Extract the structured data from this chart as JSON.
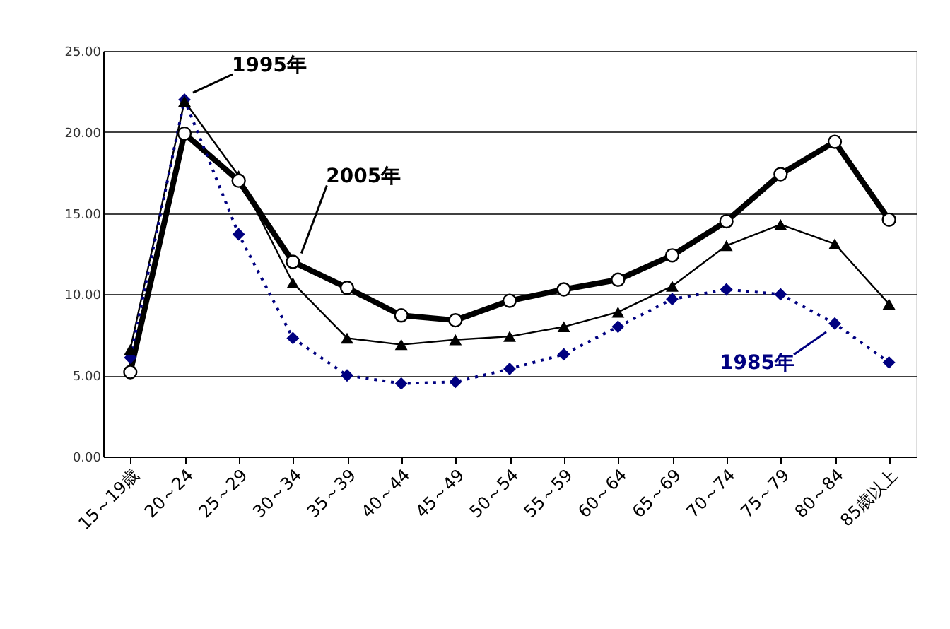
{
  "chart_data": {
    "type": "line",
    "categories": [
      "15～19歳",
      "20～24",
      "25～29",
      "30～34",
      "35～39",
      "40～44",
      "45～49",
      "50～54",
      "55～59",
      "60～64",
      "65～69",
      "70～74",
      "75～79",
      "80～84",
      "85歳以上"
    ],
    "series": [
      {
        "name": "2005年",
        "color": "#000000",
        "marker": "circle",
        "line_style": "solid",
        "values": [
          5.2,
          19.9,
          17.0,
          12.0,
          10.4,
          8.7,
          8.4,
          9.6,
          10.3,
          10.9,
          12.4,
          14.5,
          17.4,
          19.4,
          14.6
        ]
      },
      {
        "name": "1995年",
        "color": "#000000",
        "marker": "triangle",
        "line_style": "solid",
        "values": [
          6.6,
          21.9,
          17.3,
          10.7,
          7.3,
          6.9,
          7.2,
          7.4,
          8.0,
          8.9,
          10.5,
          13.0,
          14.3,
          13.1,
          9.4
        ]
      },
      {
        "name": "1985年",
        "color": "#000080",
        "marker": "diamond",
        "line_style": "dotted",
        "values": [
          6.1,
          22.0,
          13.7,
          7.3,
          5.0,
          4.5,
          4.6,
          5.4,
          6.3,
          8.0,
          9.7,
          10.3,
          10.0,
          8.2,
          5.8
        ]
      }
    ],
    "ylim": [
      0,
      25
    ],
    "yticks": [
      {
        "value": 0,
        "label": "0.00"
      },
      {
        "value": 5,
        "label": "5.00"
      },
      {
        "value": 10,
        "label": "10.00"
      },
      {
        "value": 15,
        "label": "15.00"
      },
      {
        "value": 20,
        "label": "20.00"
      },
      {
        "value": 25,
        "label": "25.00"
      }
    ],
    "grid": "y"
  }
}
